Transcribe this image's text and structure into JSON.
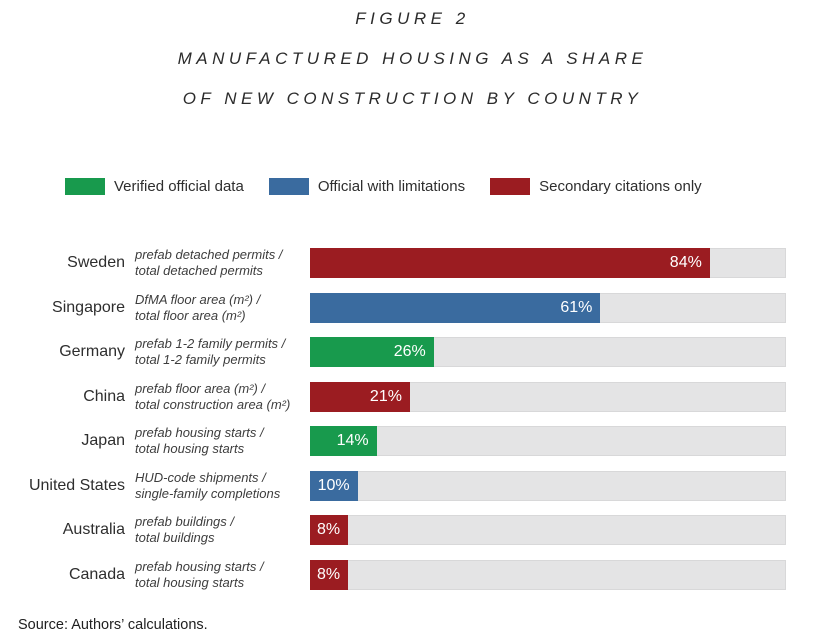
{
  "title": {
    "line1": "FIGURE 2",
    "line2": "MANUFACTURED HOUSING AS A SHARE",
    "line3": "OF NEW CONSTRUCTION BY COUNTRY"
  },
  "colors": {
    "green": "#189a4d",
    "blue": "#3a6b9f",
    "red": "#9b1c21",
    "track": "#e4e4e5"
  },
  "legend": {
    "items": [
      {
        "label": "Verified official data",
        "color_key": "green"
      },
      {
        "label": "Official with limitations",
        "color_key": "blue"
      },
      {
        "label": "Secondary citations only",
        "color_key": "red"
      }
    ]
  },
  "chart_data": {
    "type": "bar",
    "orientation": "horizontal",
    "title": "Manufactured housing as a share of new construction by country",
    "xlabel": "",
    "ylabel": "",
    "xlim": [
      0,
      100
    ],
    "unit": "%",
    "grid": false,
    "legend_position": "top",
    "categories": [
      "Sweden",
      "Singapore",
      "Germany",
      "China",
      "Japan",
      "United States",
      "Australia",
      "Canada"
    ],
    "values": [
      84,
      61,
      26,
      21,
      14,
      10,
      8,
      8
    ],
    "rows": [
      {
        "country": "Sweden",
        "metric_line1": "prefab detached permits /",
        "metric_line2": "total detached permits",
        "value": 84,
        "value_label": "84%",
        "color_key": "red"
      },
      {
        "country": "Singapore",
        "metric_line1": "DfMA floor area (m²) /",
        "metric_line2": "total floor area (m²)",
        "value": 61,
        "value_label": "61%",
        "color_key": "blue"
      },
      {
        "country": "Germany",
        "metric_line1": "prefab 1-2 family permits /",
        "metric_line2": "total 1-2 family permits",
        "value": 26,
        "value_label": "26%",
        "color_key": "green"
      },
      {
        "country": "China",
        "metric_line1": "prefab floor area (m²) /",
        "metric_line2": "total construction area (m²)",
        "value": 21,
        "value_label": "21%",
        "color_key": "red"
      },
      {
        "country": "Japan",
        "metric_line1": "prefab housing starts /",
        "metric_line2": "total housing starts",
        "value": 14,
        "value_label": "14%",
        "color_key": "green"
      },
      {
        "country": "United States",
        "metric_line1": "HUD-code shipments /",
        "metric_line2": "single-family completions",
        "value": 10,
        "value_label": "10%",
        "color_key": "blue"
      },
      {
        "country": "Australia",
        "metric_line1": "prefab buildings /",
        "metric_line2": "total buildings",
        "value": 8,
        "value_label": "8%",
        "color_key": "red"
      },
      {
        "country": "Canada",
        "metric_line1": "prefab housing starts /",
        "metric_line2": "total housing starts",
        "value": 8,
        "value_label": "8%",
        "color_key": "red"
      }
    ]
  },
  "source": "Source: Authors’ calculations."
}
